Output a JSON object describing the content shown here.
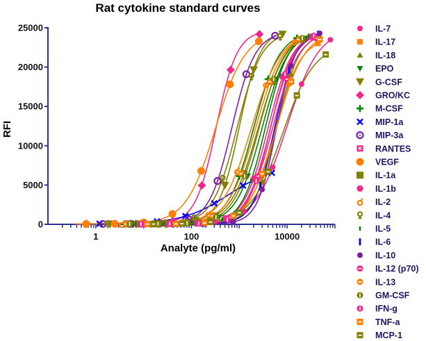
{
  "chart_data": {
    "type": "scatter",
    "title": "Rat cytokine standard curves",
    "xlabel": "Analyte (pg/ml)",
    "ylabel": "RFI",
    "xscale": "log",
    "xlim": [
      0.1,
      100000
    ],
    "ylim": [
      0,
      25000
    ],
    "xticks": [
      {
        "value": 1,
        "label": "1"
      },
      {
        "value": 100,
        "label": "100"
      },
      {
        "value": 10000,
        "label": "10000"
      }
    ],
    "yticks": [
      {
        "value": 0,
        "label": "0"
      },
      {
        "value": 5000,
        "label": "5000"
      },
      {
        "value": 10000,
        "label": "10000"
      },
      {
        "value": 15000,
        "label": "15000"
      },
      {
        "value": 20000,
        "label": "20000"
      },
      {
        "value": 25000,
        "label": "25000"
      }
    ],
    "grid": false,
    "legend_position": "right",
    "axis_color": "#2e3192",
    "series": [
      {
        "name": "IL-7",
        "color": "#f0288c",
        "marker": "circle",
        "fit": {
          "ec50": 10000,
          "hill": 1.3,
          "top": 25000,
          "bottom": 50
        },
        "x": [
          80000,
          20000,
          5000,
          1250,
          313,
          78,
          20
        ],
        "y": [
          23480,
          17830,
          7270,
          1630,
          330,
          100,
          50
        ]
      },
      {
        "name": "IL-17",
        "color": "#ff8000",
        "marker": "square",
        "fit": {
          "ec50": 5500,
          "hill": 1.6,
          "top": 23800,
          "bottom": 50
        },
        "x": [
          44000,
          11000,
          2750,
          688,
          172,
          43,
          11
        ],
        "y": [
          23020,
          17950,
          5950,
          880,
          140,
          60,
          50
        ]
      },
      {
        "name": "IL-18",
        "color": "#808000",
        "marker": "triangle-up",
        "fit": {
          "ec50": 6000,
          "hill": 1.8,
          "top": 24500,
          "bottom": 50
        },
        "x": [
          48000,
          12000,
          3000,
          750,
          188,
          47,
          12
        ],
        "y": [
          23990,
          19090,
          5510,
          610,
          100,
          55,
          50
        ]
      },
      {
        "name": "EPO",
        "color": "#008000",
        "marker": "triangle-down",
        "fit": {
          "ec50": 3000,
          "hill": 1.6,
          "top": 24500,
          "bottom": 50
        },
        "x": [
          24000,
          6000,
          1500,
          375,
          94,
          23,
          5.9
        ],
        "y": [
          23690,
          18470,
          6130,
          910,
          150,
          60,
          50
        ]
      },
      {
        "name": "G-CSF",
        "color": "#808000",
        "marker": "triangle-down-large",
        "fit": {
          "ec50": 1000,
          "hill": 2,
          "top": 24700,
          "bottom": 50
        },
        "x": [
          8000,
          2000,
          500,
          125,
          31,
          7.8,
          2
        ],
        "y": [
          24180,
          19650,
          4950,
          430,
          75,
          50,
          50
        ]
      },
      {
        "name": "GRO/KC",
        "color": "#f0288c",
        "marker": "diamond",
        "fit": {
          "ec50": 330,
          "hill": 2,
          "top": 24700,
          "bottom": 50
        },
        "x": [
          2640,
          660,
          165,
          41,
          10,
          2.6,
          0.64
        ],
        "y": [
          24180,
          19650,
          4950,
          430,
          75,
          50,
          50
        ]
      },
      {
        "name": "M-CSF",
        "color": "#008000",
        "marker": "plus",
        "fit": {
          "ec50": 2000,
          "hill": 1.6,
          "top": 24500,
          "bottom": 50
        },
        "x": [
          16000,
          4000,
          1000,
          250,
          63,
          16,
          3.9
        ],
        "y": [
          23690,
          18470,
          6130,
          910,
          150,
          60,
          50
        ]
      },
      {
        "name": "MIP-1a",
        "color": "#0000ff",
        "marker": "cross",
        "fit": {
          "ec50": 600,
          "hill": 0.9,
          "top": 7500,
          "bottom": 50
        },
        "x": [
          4800,
          1200,
          300,
          75,
          19,
          4.7,
          1.2
        ],
        "y": [
          6550,
          4930,
          2670,
          1050,
          370,
          140,
          80
        ]
      },
      {
        "name": "MIP-3a",
        "color": "#7a1fa2",
        "marker": "ring",
        "fit": {
          "ec50": 700,
          "hill": 1.8,
          "top": 24500,
          "bottom": 50
        },
        "x": [
          5600,
          1400,
          350,
          88,
          22,
          5.5,
          1.4
        ],
        "y": [
          23990,
          19090,
          5510,
          610,
          100,
          55,
          50
        ]
      },
      {
        "name": "RANTES",
        "color": "#f0288c",
        "marker": "square-dot",
        "fit": {
          "ec50": 4500,
          "hill": 1.7,
          "top": 24500,
          "bottom": 50
        },
        "x": [
          36000,
          9000,
          2250,
          563,
          141,
          35,
          8.8
        ],
        "y": [
          23860,
          18790,
          5810,
          760,
          120,
          55,
          50
        ]
      },
      {
        "name": "VEGF",
        "color": "#ff8000",
        "marker": "circle-large",
        "fit": {
          "ec50": 320,
          "hill": 1.4,
          "top": 24500,
          "bottom": 50
        },
        "x": [
          2560,
          640,
          160,
          40,
          10,
          2.5,
          0.63
        ],
        "y": [
          23280,
          17810,
          6790,
          1320,
          240,
          70,
          50
        ]
      },
      {
        "name": "IL-1a",
        "color": "#808000",
        "marker": "square-large",
        "fit": {
          "ec50": 2500,
          "hill": 1.5,
          "top": 24500,
          "bottom": 50
        },
        "x": [
          20000,
          5000,
          1250,
          313,
          78,
          20,
          4.9
        ],
        "y": [
          23520,
          18160,
          6440,
          1080,
          180,
          60,
          50
        ]
      },
      {
        "name": "IL-1b",
        "color": "#f0288c",
        "marker": "hexagon",
        "fit": {
          "ec50": 4000,
          "hill": 1.7,
          "top": 24500,
          "bottom": 50
        },
        "x": [
          32000,
          8000,
          2000,
          500,
          125,
          31,
          7.8
        ],
        "y": [
          23860,
          18790,
          5810,
          760,
          120,
          55,
          50
        ]
      },
      {
        "name": "IL-2",
        "color": "#ff8000",
        "marker": "male",
        "fit": {
          "ec50": 1800,
          "hill": 1.4,
          "top": 24500,
          "bottom": 50
        },
        "x": [
          14400,
          3600,
          900,
          225,
          56,
          14,
          3.5
        ],
        "y": [
          23280,
          17810,
          6790,
          1320,
          240,
          70,
          50
        ]
      },
      {
        "name": "IL-4",
        "color": "#808000",
        "marker": "female",
        "fit": {
          "ec50": 900,
          "hill": 1.7,
          "top": 24500,
          "bottom": 50
        },
        "x": [
          7200,
          1800,
          450,
          113,
          28,
          7,
          1.8
        ],
        "y": [
          23860,
          18790,
          5810,
          760,
          120,
          55,
          50
        ]
      },
      {
        "name": "IL-5",
        "color": "#008000",
        "marker": "bar-small",
        "fit": {
          "ec50": 3500,
          "hill": 1.8,
          "top": 24500,
          "bottom": 50
        },
        "x": [
          28000,
          7000,
          1750,
          438,
          109,
          27,
          6.8
        ],
        "y": [
          23990,
          19090,
          5510,
          610,
          100,
          55,
          50
        ]
      },
      {
        "name": "IL-6",
        "color": "#0000ff",
        "marker": "bar",
        "fit": {
          "ec50": 5500,
          "hill": 2,
          "top": 24500,
          "bottom": 50
        },
        "x": [
          44000,
          11000,
          2750,
          688,
          172,
          43,
          11
        ],
        "y": [
          24180,
          19650,
          4950,
          430,
          75,
          50,
          50
        ]
      },
      {
        "name": "IL-10",
        "color": "#7a1fa2",
        "marker": "circle",
        "fit": {
          "ec50": 6000,
          "hill": 2.2,
          "top": 24500,
          "bottom": 50
        },
        "x": [
          48000,
          12000,
          3000,
          750,
          188,
          47,
          12
        ],
        "y": [
          24300,
          20160,
          4440,
          300,
          60,
          50,
          50
        ]
      },
      {
        "name": "IL-12 (p70)",
        "color": "#f0288c",
        "marker": "circle-dash",
        "fit": {
          "ec50": 5000,
          "hill": 1.6,
          "top": 24500,
          "bottom": 50
        },
        "x": [
          40000,
          10000,
          2500,
          625,
          156,
          39,
          9.8
        ],
        "y": [
          23690,
          18470,
          6130,
          910,
          150,
          60,
          50
        ]
      },
      {
        "name": "IL-13",
        "color": "#ff8000",
        "marker": "circle-dash",
        "fit": {
          "ec50": 2200,
          "hill": 1.5,
          "top": 24500,
          "bottom": 50
        },
        "x": [
          17600,
          4400,
          1100,
          275,
          69,
          17,
          4.3
        ],
        "y": [
          23520,
          18160,
          6440,
          1080,
          180,
          60,
          50
        ]
      },
      {
        "name": "GM-CSF",
        "color": "#808000",
        "marker": "circle-half",
        "fit": {
          "ec50": 2600,
          "hill": 1.6,
          "top": 24500,
          "bottom": 50
        },
        "x": [
          20800,
          5200,
          1300,
          325,
          81,
          20,
          5.1
        ],
        "y": [
          23690,
          18470,
          6130,
          910,
          150,
          60,
          50
        ]
      },
      {
        "name": "IFN-g",
        "color": "#f0288c",
        "marker": "circle-half",
        "fit": {
          "ec50": 4500,
          "hill": 1.8,
          "top": 24500,
          "bottom": 50
        },
        "x": [
          36000,
          9000,
          2250,
          563,
          141,
          35,
          8.8
        ],
        "y": [
          23990,
          19090,
          5510,
          610,
          100,
          55,
          50
        ]
      },
      {
        "name": "TNF-a",
        "color": "#ff8000",
        "marker": "square-dash",
        "fit": {
          "ec50": 6000,
          "hill": 1.5,
          "top": 24500,
          "bottom": 50
        },
        "x": [
          48000,
          12000,
          3000,
          750,
          188,
          47,
          12
        ],
        "y": [
          23520,
          18160,
          6440,
          1080,
          180,
          60,
          50
        ]
      },
      {
        "name": "MCP-1",
        "color": "#808000",
        "marker": "square-dash",
        "fit": {
          "ec50": 8000,
          "hill": 1.3,
          "top": 23000,
          "bottom": 50
        },
        "x": [
          64000,
          16000,
          4000,
          1000,
          250,
          63,
          16
        ],
        "y": [
          21600,
          16400,
          6700,
          1500,
          300,
          96,
          50
        ]
      }
    ]
  }
}
